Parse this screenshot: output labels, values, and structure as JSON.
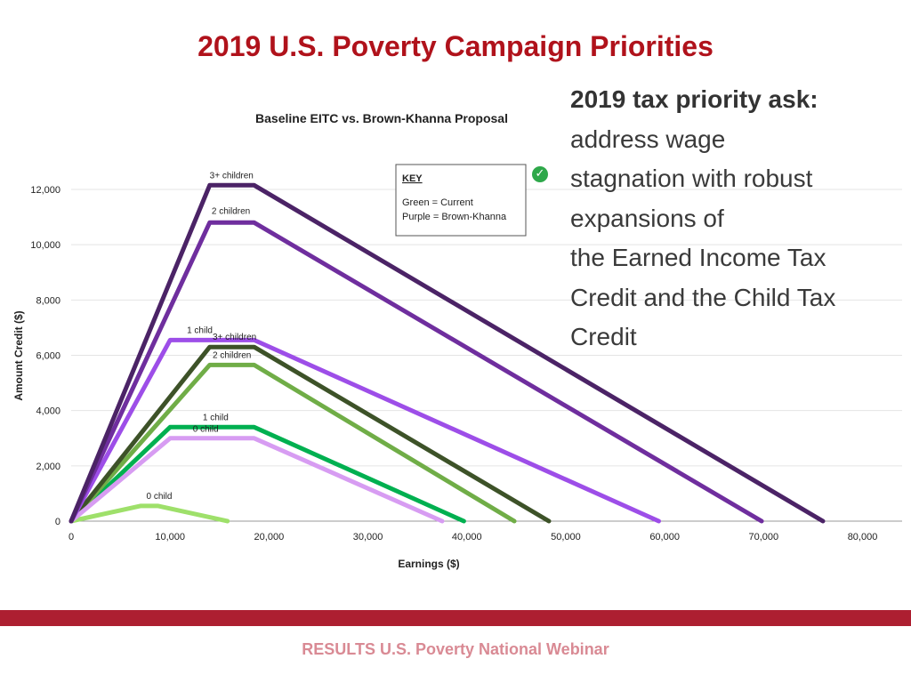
{
  "slide": {
    "title": "2019 U.S. Poverty Campaign Priorities",
    "side_text": {
      "heading": "2019 tax priority ask:",
      "lines": [
        "address wage",
        "stagnation with robust",
        "expansions of",
        "the Earned Income Tax",
        "Credit and the Child Tax",
        "Credit"
      ]
    },
    "footer": "RESULTS U.S. Poverty National Webinar",
    "check_icon": "checkmark-icon",
    "bar_color": "#ad1f31"
  },
  "chart_data": {
    "type": "line",
    "title": "Baseline EITC vs. Brown-Khanna Proposal",
    "xlabel": "Earnings ($)",
    "ylabel": "Amount Credit ($)",
    "xlim": [
      0,
      84000
    ],
    "ylim": [
      0,
      12000
    ],
    "x_ticks": [
      0,
      10000,
      20000,
      30000,
      40000,
      50000,
      60000,
      70000,
      80000
    ],
    "x_tick_labels": [
      "0",
      "10,000",
      "20,000",
      "30,000",
      "40,000",
      "50,000",
      "60,000",
      "70,000",
      "80,000"
    ],
    "y_ticks": [
      0,
      2000,
      4000,
      6000,
      8000,
      10000,
      12000
    ],
    "y_tick_labels": [
      "0",
      "2,000",
      "4,000",
      "6,000",
      "8,000",
      "10,000",
      "12,000"
    ],
    "grid": true,
    "key": {
      "title": "KEY",
      "rows": [
        "Green  = Current",
        "Purple =  Brown-Khanna"
      ]
    },
    "series": [
      {
        "name": "3+ children",
        "group": "Brown-Khanna",
        "color": "#4b2366",
        "label_x": 14000,
        "label_y": 12150,
        "x": [
          0,
          14000,
          18500,
          76000
        ],
        "y": [
          0,
          12150,
          12150,
          0
        ]
      },
      {
        "name": "2 children",
        "group": "Brown-Khanna",
        "color": "#6f2e9e",
        "label_x": 14200,
        "label_y": 10850,
        "x": [
          0,
          14000,
          18500,
          69800
        ],
        "y": [
          0,
          10800,
          10800,
          0
        ]
      },
      {
        "name": "1 child",
        "group": "Brown-Khanna",
        "color": "#9d4ee8",
        "label_x": 11700,
        "label_y": 6550,
        "x": [
          0,
          10000,
          18500,
          59400
        ],
        "y": [
          0,
          6550,
          6550,
          0
        ]
      },
      {
        "name": "0 child",
        "group": "Brown-Khanna",
        "color": "#d79cf2",
        "label_x": 12300,
        "label_y": 2980,
        "x": [
          0,
          10000,
          18500,
          37500
        ],
        "y": [
          0,
          3000,
          3000,
          0
        ]
      },
      {
        "name": "3+ children",
        "group": "Current",
        "color": "#3d5228",
        "label_x": 14300,
        "label_y": 6300,
        "x": [
          0,
          14000,
          18500,
          48300
        ],
        "y": [
          0,
          6300,
          6300,
          0
        ]
      },
      {
        "name": "2 children",
        "group": "Current",
        "color": "#70ad47",
        "label_x": 14300,
        "label_y": 5650,
        "x": [
          0,
          14000,
          18500,
          44800
        ],
        "y": [
          0,
          5650,
          5650,
          0
        ]
      },
      {
        "name": "1 child",
        "group": "Current",
        "color": "#00b050",
        "label_x": 13300,
        "label_y": 3400,
        "x": [
          0,
          10000,
          18500,
          39700
        ],
        "y": [
          0,
          3400,
          3400,
          0
        ]
      },
      {
        "name": "0 child",
        "group": "Current",
        "color": "#9ee06a",
        "label_x": 7600,
        "label_y": 540,
        "x": [
          0,
          7000,
          8800,
          15800
        ],
        "y": [
          0,
          550,
          550,
          0
        ]
      }
    ]
  }
}
